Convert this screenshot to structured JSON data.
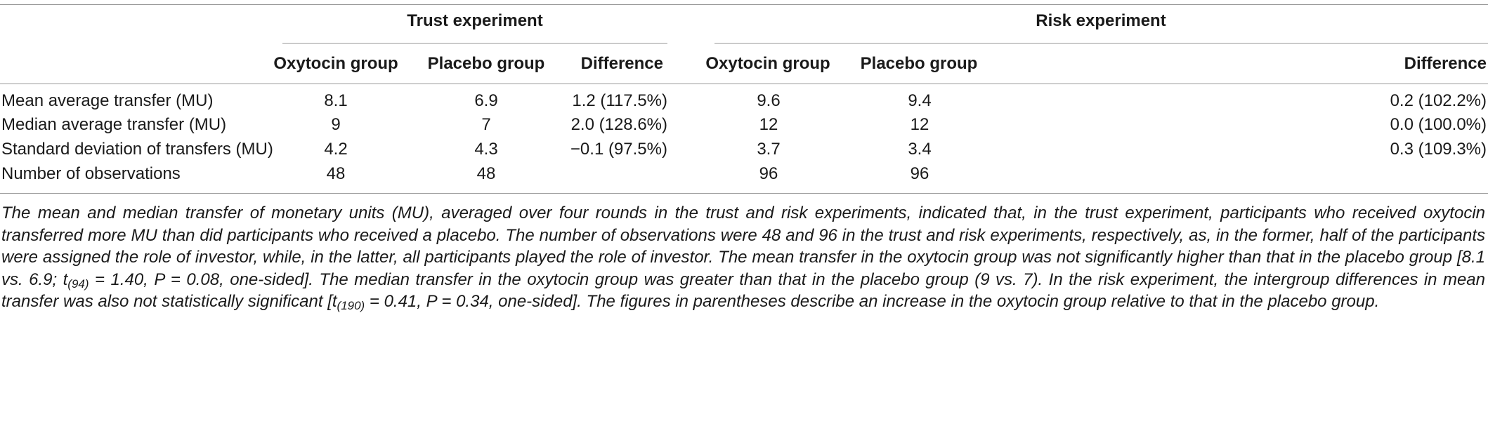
{
  "table": {
    "group_headers": {
      "trust": "Trust experiment",
      "risk": "Risk experiment"
    },
    "columns": {
      "trust_oxytocin": "Oxytocin group",
      "trust_placebo": "Placebo group",
      "trust_difference": "Difference",
      "risk_oxytocin": "Oxytocin group",
      "risk_placebo": "Placebo group",
      "risk_difference": "Difference"
    },
    "rows": [
      {
        "label": "Mean average transfer (MU)",
        "trust_oxytocin": "8.1",
        "trust_placebo": "6.9",
        "trust_difference": "1.2 (117.5%)",
        "risk_oxytocin": "9.6",
        "risk_placebo": "9.4",
        "risk_difference": "0.2 (102.2%)"
      },
      {
        "label": "Median average transfer (MU)",
        "trust_oxytocin": "9",
        "trust_placebo": "7",
        "trust_difference": "2.0 (128.6%)",
        "risk_oxytocin": "12",
        "risk_placebo": "12",
        "risk_difference": "0.0 (100.0%)"
      },
      {
        "label": "Standard deviation of transfers (MU)",
        "trust_oxytocin": "4.2",
        "trust_placebo": "4.3",
        "trust_difference": "−0.1 (97.5%)",
        "risk_oxytocin": "3.7",
        "risk_placebo": "3.4",
        "risk_difference": "0.3 (109.3%)"
      },
      {
        "label": "Number of observations",
        "trust_oxytocin": "48",
        "trust_placebo": "48",
        "trust_difference": "",
        "risk_oxytocin": "96",
        "risk_placebo": "96",
        "risk_difference": ""
      }
    ]
  },
  "caption": {
    "part1": "The mean and median transfer of monetary units (MU), averaged over four rounds in the trust and risk experiments, indicated that, in the trust experiment, participants who received oxytocin transferred more MU than did participants who received a placebo. The number of observations were 48 and 96 in the trust and risk experiments, respectively, as, in the former, half of the participants were assigned the role of investor, while, in the latter, all participants played the role of investor. The mean transfer in the oxytocin group was not significantly higher than that in the placebo group [8.1 vs. 6.9; t",
    "sub1": "(94)",
    "part2": " = 1.40, P = 0.08, one-sided]. The median transfer in the oxytocin group was greater than that in the placebo group (9 vs. 7). In the risk experiment, the intergroup differences in mean transfer was also not statistically significant [t",
    "sub2": "(190)",
    "part3": " = 0.41, P = 0.34, one-sided]. The figures in parentheses describe an increase in the oxytocin group relative to that in the placebo group."
  }
}
